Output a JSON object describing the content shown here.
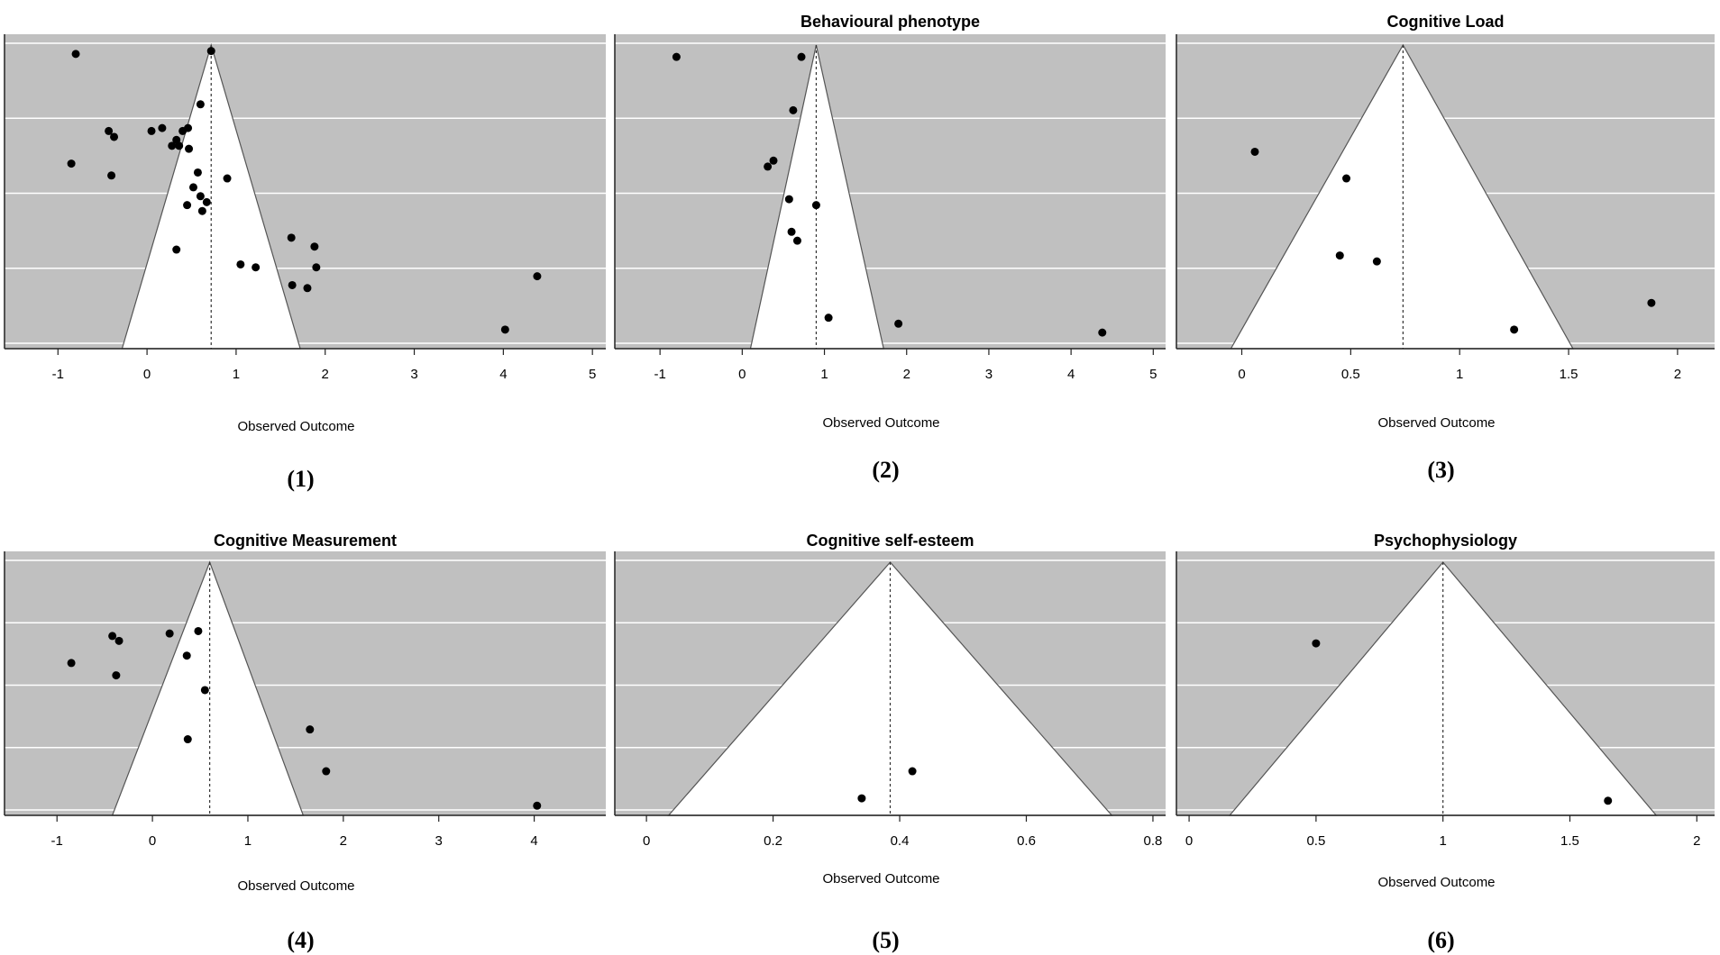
{
  "chart_data": [
    {
      "type": "scatter",
      "title": "",
      "xlabel": "Observed Outcome",
      "caption": "(1)",
      "xlim": [
        -1.6,
        5.15
      ],
      "xticks": [
        -1,
        0,
        1,
        2,
        3,
        4,
        5
      ],
      "xtick_labels": [
        "-1",
        "0",
        "1",
        "2",
        "3",
        "4",
        "5"
      ],
      "summary_effect": 0.72,
      "funnel_base": [
        -0.28,
        1.72
      ],
      "points": [
        {
          "x": -0.8,
          "y": 0.97
        },
        {
          "x": 0.72,
          "y": 0.98
        },
        {
          "x": 0.6,
          "y": 0.8
        },
        {
          "x": -0.43,
          "y": 0.71
        },
        {
          "x": -0.37,
          "y": 0.69
        },
        {
          "x": 0.05,
          "y": 0.71
        },
        {
          "x": 0.17,
          "y": 0.72
        },
        {
          "x": 0.4,
          "y": 0.71
        },
        {
          "x": 0.46,
          "y": 0.72
        },
        {
          "x": 0.33,
          "y": 0.68
        },
        {
          "x": 0.28,
          "y": 0.66
        },
        {
          "x": 0.36,
          "y": 0.66
        },
        {
          "x": 0.47,
          "y": 0.65
        },
        {
          "x": -0.85,
          "y": 0.6
        },
        {
          "x": -0.4,
          "y": 0.56
        },
        {
          "x": 0.57,
          "y": 0.57
        },
        {
          "x": 0.9,
          "y": 0.55
        },
        {
          "x": 0.52,
          "y": 0.52
        },
        {
          "x": 0.6,
          "y": 0.49
        },
        {
          "x": 0.67,
          "y": 0.47
        },
        {
          "x": 0.45,
          "y": 0.46
        },
        {
          "x": 0.62,
          "y": 0.44
        },
        {
          "x": 1.62,
          "y": 0.35
        },
        {
          "x": 1.88,
          "y": 0.32
        },
        {
          "x": 0.33,
          "y": 0.31
        },
        {
          "x": 1.05,
          "y": 0.26
        },
        {
          "x": 1.22,
          "y": 0.25
        },
        {
          "x": 1.9,
          "y": 0.25
        },
        {
          "x": 1.63,
          "y": 0.19
        },
        {
          "x": 1.8,
          "y": 0.18
        },
        {
          "x": 4.38,
          "y": 0.22
        },
        {
          "x": 4.02,
          "y": 0.04
        }
      ]
    },
    {
      "type": "scatter",
      "title": "Behavioural phenotype",
      "xlabel": "Observed Outcome",
      "caption": "(2)",
      "xlim": [
        -1.55,
        5.15
      ],
      "xticks": [
        -1,
        0,
        1,
        2,
        3,
        4,
        5
      ],
      "xtick_labels": [
        "-1",
        "0",
        "1",
        "2",
        "3",
        "4",
        "5"
      ],
      "summary_effect": 0.9,
      "funnel_base": [
        0.1,
        1.72
      ],
      "points": [
        {
          "x": -0.8,
          "y": 0.96
        },
        {
          "x": 0.72,
          "y": 0.96
        },
        {
          "x": 0.62,
          "y": 0.78
        },
        {
          "x": 0.38,
          "y": 0.61
        },
        {
          "x": 0.31,
          "y": 0.59
        },
        {
          "x": 0.57,
          "y": 0.48
        },
        {
          "x": 0.9,
          "y": 0.46
        },
        {
          "x": 0.6,
          "y": 0.37
        },
        {
          "x": 0.67,
          "y": 0.34
        },
        {
          "x": 1.05,
          "y": 0.08
        },
        {
          "x": 1.9,
          "y": 0.06
        },
        {
          "x": 4.38,
          "y": 0.03
        }
      ]
    },
    {
      "type": "scatter",
      "title": "Cognitive Load",
      "xlabel": "Observed Outcome",
      "caption": "(3)",
      "xlim": [
        -0.3,
        2.17
      ],
      "xticks": [
        0,
        0.5,
        1,
        1.5,
        2
      ],
      "xtick_labels": [
        "0",
        "0.5",
        "1",
        "1.5",
        "2"
      ],
      "summary_effect": 0.74,
      "funnel_base": [
        -0.05,
        1.52
      ],
      "points": [
        {
          "x": 0.06,
          "y": 0.64
        },
        {
          "x": 0.48,
          "y": 0.55
        },
        {
          "x": 0.45,
          "y": 0.29
        },
        {
          "x": 0.62,
          "y": 0.27
        },
        {
          "x": 1.88,
          "y": 0.13
        },
        {
          "x": 1.25,
          "y": 0.04
        }
      ]
    },
    {
      "type": "scatter",
      "title": "Cognitive Measurement",
      "xlabel": "Observed Outcome",
      "caption": "(4)",
      "xlim": [
        -1.55,
        4.75
      ],
      "xticks": [
        -1,
        0,
        1,
        2,
        3,
        4
      ],
      "xtick_labels": [
        "-1",
        "0",
        "1",
        "2",
        "3",
        "4"
      ],
      "summary_effect": 0.6,
      "funnel_base": [
        -0.42,
        1.58
      ],
      "points": [
        {
          "x": 0.18,
          "y": 0.71
        },
        {
          "x": 0.48,
          "y": 0.72
        },
        {
          "x": -0.42,
          "y": 0.7
        },
        {
          "x": -0.35,
          "y": 0.68
        },
        {
          "x": 0.36,
          "y": 0.62
        },
        {
          "x": -0.85,
          "y": 0.59
        },
        {
          "x": -0.38,
          "y": 0.54
        },
        {
          "x": 0.55,
          "y": 0.48
        },
        {
          "x": 1.65,
          "y": 0.32
        },
        {
          "x": 0.37,
          "y": 0.28
        },
        {
          "x": 1.82,
          "y": 0.15
        },
        {
          "x": 4.03,
          "y": 0.01
        }
      ]
    },
    {
      "type": "scatter",
      "title": "Cognitive self-esteem",
      "xlabel": "Observed Outcome",
      "caption": "(5)",
      "xlim": [
        -0.05,
        0.82
      ],
      "xticks": [
        0,
        0.2,
        0.4,
        0.6,
        0.8
      ],
      "xtick_labels": [
        "0",
        "0.2",
        "0.4",
        "0.6",
        "0.8"
      ],
      "summary_effect": 0.385,
      "funnel_base": [
        0.035,
        0.735
      ],
      "points": [
        {
          "x": 0.42,
          "y": 0.15
        },
        {
          "x": 0.34,
          "y": 0.04
        }
      ]
    },
    {
      "type": "scatter",
      "title": "Psychophysiology",
      "xlabel": "Observed Outcome",
      "caption": "(6)",
      "xlim": [
        -0.05,
        2.07
      ],
      "xticks": [
        0,
        0.5,
        1,
        1.5,
        2
      ],
      "xtick_labels": [
        "0",
        "0.5",
        "1",
        "1.5",
        "2"
      ],
      "summary_effect": 1.0,
      "funnel_base": [
        0.16,
        1.84
      ],
      "points": [
        {
          "x": 0.5,
          "y": 0.67
        },
        {
          "x": 1.65,
          "y": 0.03
        }
      ]
    }
  ]
}
